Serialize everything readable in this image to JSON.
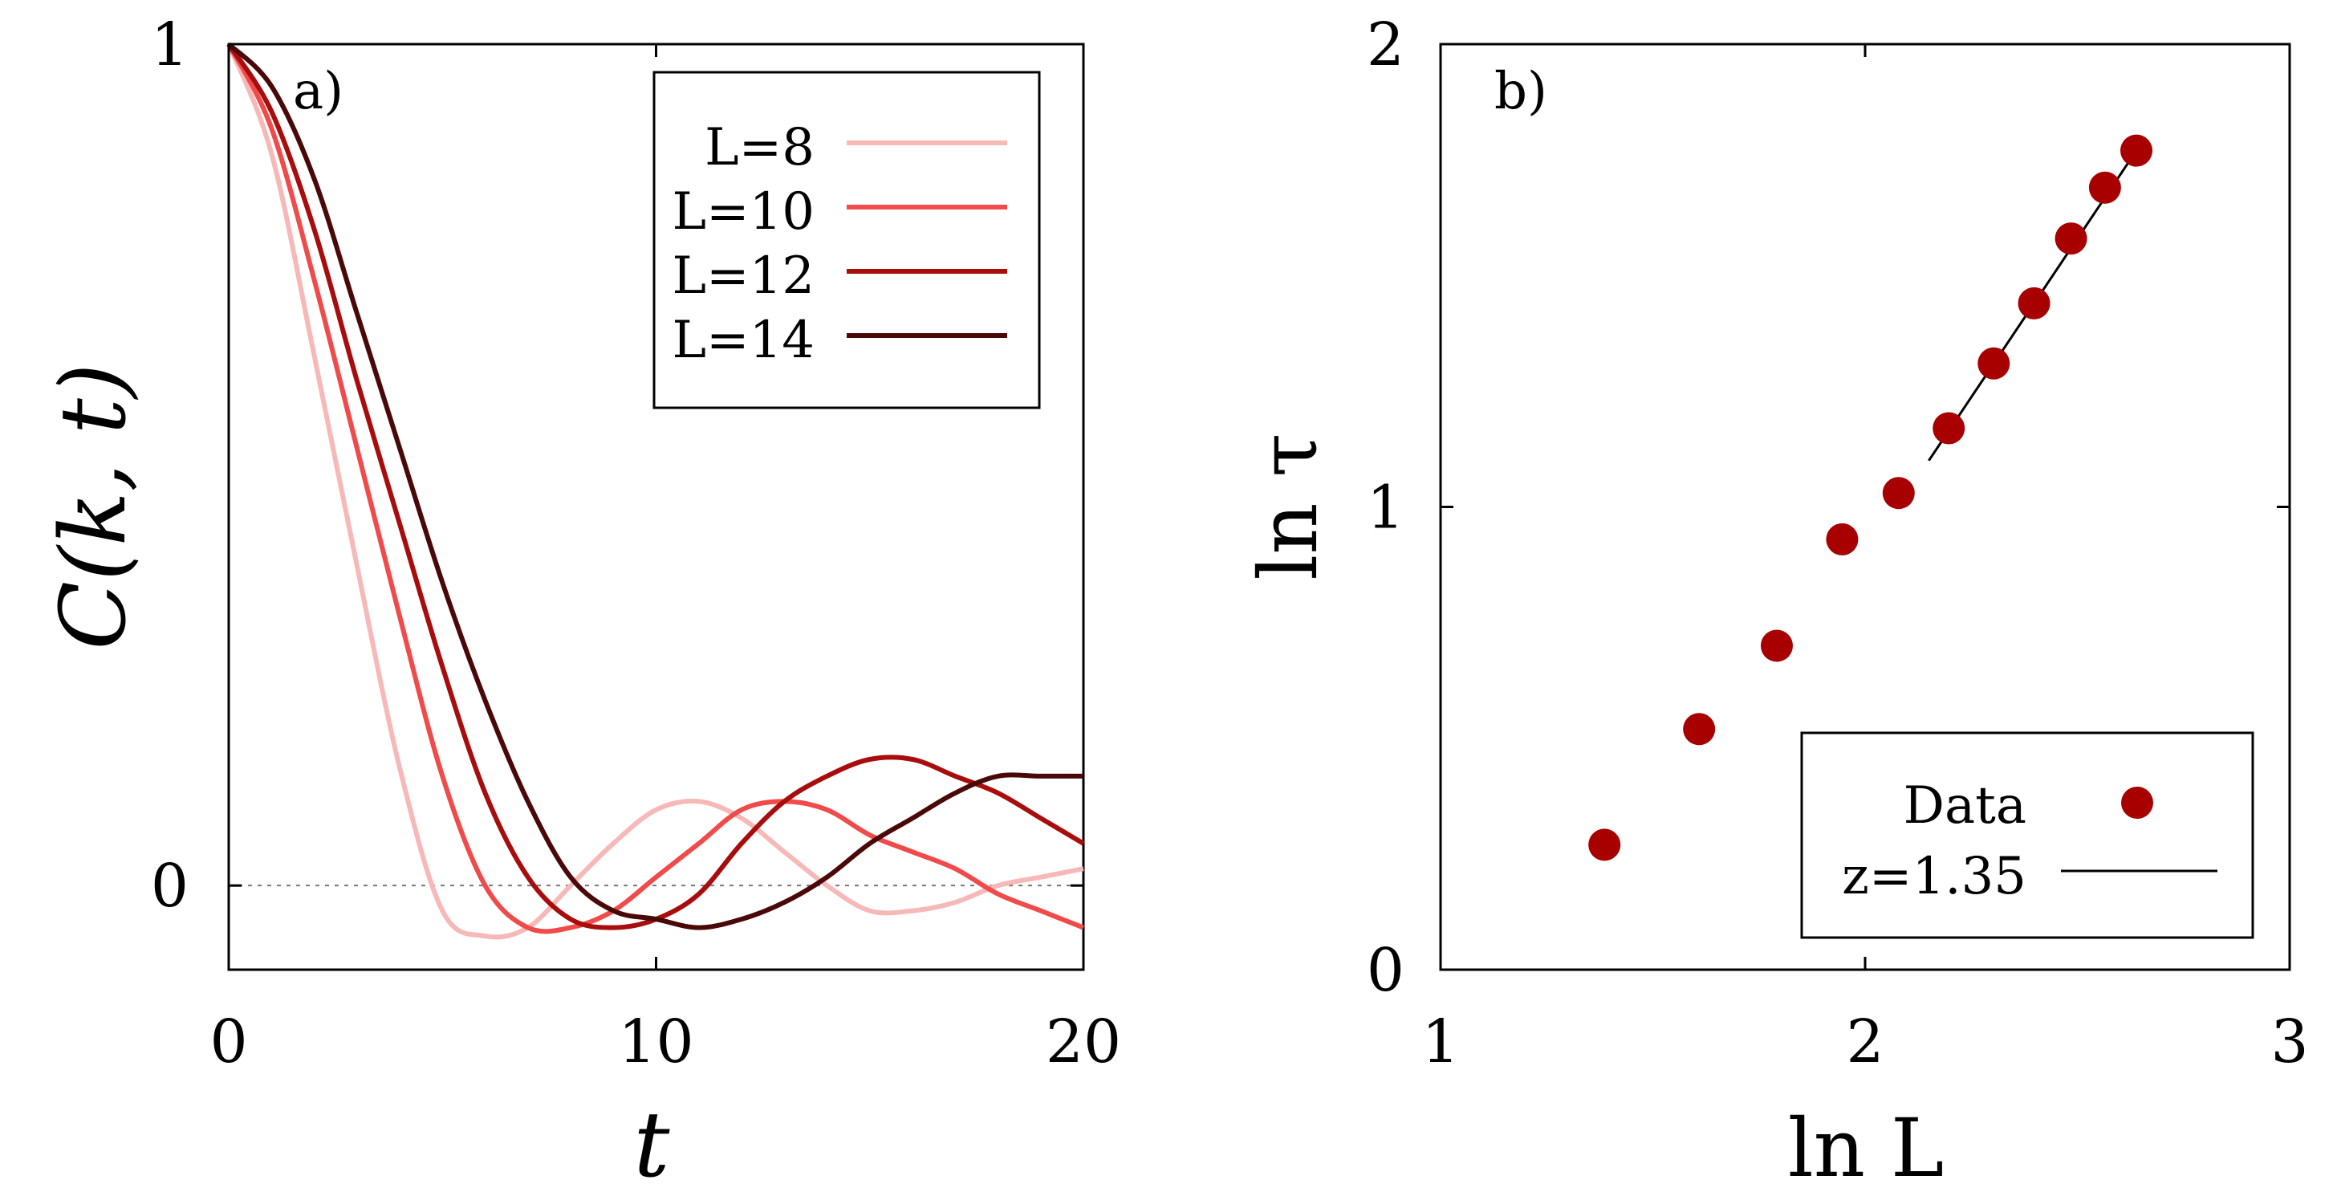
{
  "chart_data": [
    {
      "type": "line",
      "panel_label": "a)",
      "xlabel": "t",
      "ylabel": "C(k, t)",
      "xlim": [
        0,
        20
      ],
      "ylim": [
        -0.1,
        1
      ],
      "xticks": [
        {
          "value": 0,
          "label": "0"
        },
        {
          "value": 10,
          "label": "10"
        },
        {
          "value": 20,
          "label": "20"
        }
      ],
      "yticks": [
        {
          "value": 0,
          "label": "0"
        },
        {
          "value": 1,
          "label": "1"
        }
      ],
      "reference_line": {
        "y": 0,
        "style": "dotted"
      },
      "legend_position": "top-right",
      "grid": false,
      "series": [
        {
          "name": "L=8",
          "color": "#f7b8b8",
          "x": [
            0,
            1,
            2,
            3,
            4,
            5,
            6,
            7,
            8,
            9,
            10,
            11,
            12,
            13,
            14,
            15,
            16,
            17,
            18,
            19,
            20
          ],
          "y": [
            1.0,
            0.87,
            0.63,
            0.38,
            0.14,
            -0.03,
            -0.06,
            -0.05,
            0.0,
            0.05,
            0.09,
            0.1,
            0.08,
            0.04,
            0.0,
            -0.03,
            -0.03,
            -0.02,
            0.0,
            0.01,
            0.02
          ]
        },
        {
          "name": "L=10",
          "color": "#f04a4a",
          "x": [
            0,
            1,
            2,
            3,
            4,
            5,
            6,
            7,
            8,
            9,
            10,
            11,
            12,
            13,
            14,
            15,
            16,
            17,
            18,
            19,
            20
          ],
          "y": [
            1.0,
            0.9,
            0.72,
            0.52,
            0.32,
            0.13,
            0.0,
            -0.05,
            -0.05,
            -0.03,
            0.01,
            0.05,
            0.09,
            0.1,
            0.09,
            0.06,
            0.04,
            0.02,
            -0.01,
            -0.03,
            -0.05
          ]
        },
        {
          "name": "L=12",
          "color": "#a80c0c",
          "x": [
            0,
            1,
            2,
            3,
            4,
            5,
            6,
            7,
            8,
            9,
            10,
            11,
            12,
            13,
            14,
            15,
            16,
            17,
            18,
            19,
            20
          ],
          "y": [
            1.0,
            0.92,
            0.78,
            0.6,
            0.43,
            0.26,
            0.11,
            0.01,
            -0.04,
            -0.05,
            -0.04,
            -0.01,
            0.05,
            0.1,
            0.13,
            0.15,
            0.15,
            0.13,
            0.11,
            0.08,
            0.05
          ]
        },
        {
          "name": "L=14",
          "color": "#4a0808",
          "x": [
            0,
            1,
            2,
            3,
            4,
            5,
            6,
            7,
            8,
            9,
            10,
            11,
            12,
            13,
            14,
            15,
            16,
            17,
            18,
            19,
            20
          ],
          "y": [
            1.0,
            0.95,
            0.84,
            0.68,
            0.52,
            0.36,
            0.22,
            0.1,
            0.01,
            -0.03,
            -0.04,
            -0.05,
            -0.04,
            -0.02,
            0.01,
            0.05,
            0.08,
            0.11,
            0.13,
            0.13,
            0.13
          ]
        }
      ]
    },
    {
      "type": "scatter",
      "panel_label": "b)",
      "xlabel": "ln L",
      "ylabel": "ln τ",
      "xlim": [
        1,
        3
      ],
      "ylim": [
        0,
        2
      ],
      "xticks": [
        {
          "value": 1,
          "label": "1"
        },
        {
          "value": 2,
          "label": "2"
        },
        {
          "value": 3,
          "label": "3"
        }
      ],
      "yticks": [
        {
          "value": 0,
          "label": "0"
        },
        {
          "value": 1,
          "label": "1"
        },
        {
          "value": 2,
          "label": "2"
        }
      ],
      "legend_position": "bottom-right",
      "grid": false,
      "series": [
        {
          "name": "Data",
          "color": "#a80000",
          "marker": "circle",
          "x": [
            1.386,
            1.609,
            1.792,
            1.946,
            2.079,
            2.197,
            2.303,
            2.398,
            2.485,
            2.565,
            2.639
          ],
          "y": [
            0.27,
            0.52,
            0.7,
            0.93,
            1.03,
            1.17,
            1.31,
            1.44,
            1.58,
            1.69,
            1.77
          ]
        },
        {
          "name": "z=1.35",
          "color": "#000000",
          "type": "line",
          "x": [
            2.15,
            2.639
          ],
          "y": [
            1.1,
            1.77
          ]
        }
      ]
    }
  ]
}
